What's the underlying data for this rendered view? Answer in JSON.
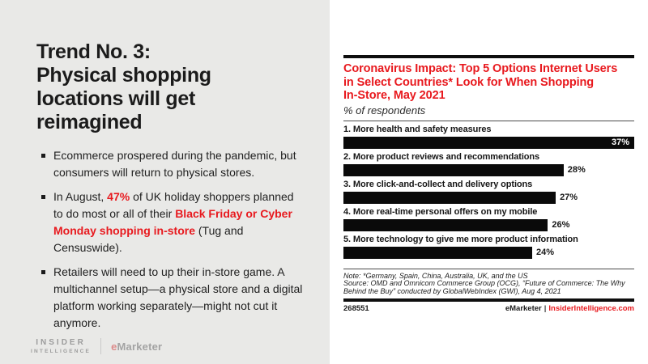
{
  "slide": {
    "title_lines": [
      "Trend No. 3:",
      "Physical shopping",
      "locations will get",
      "reimagined"
    ],
    "bullets": [
      {
        "segments": [
          {
            "text": "Ecommerce prospered during the pandemic, but consumers will return to physical stores.",
            "red": false
          }
        ]
      },
      {
        "segments": [
          {
            "text": "In August, ",
            "red": false
          },
          {
            "text": "47%",
            "red": true
          },
          {
            "text": " of UK holiday shoppers planned to do most or all of their ",
            "red": false
          },
          {
            "text": "Black Friday or Cyber Monday shopping in-store",
            "red": true
          },
          {
            "text": " (Tug and Censuswide).",
            "red": false
          }
        ]
      },
      {
        "segments": [
          {
            "text": "Retailers will need to up their in-store game. A multichannel setup—a physical store and a digital platform working separately—might not cut it anymore.",
            "red": false
          }
        ]
      }
    ],
    "logo": {
      "insider": "INSIDER",
      "intelligence": "INTELLIGENCE",
      "emarketer_e": "e",
      "emarketer_rest": "Marketer"
    }
  },
  "chart": {
    "title_lines": [
      "Coronavirus Impact: Top 5 Options Internet Users",
      "in Select Countries* Look for When Shopping",
      "In-Store, May 2021"
    ],
    "subtitle": "% of respondents",
    "bars": [
      {
        "label": "1. More health and safety measures",
        "value": "37%",
        "pct": 100
      },
      {
        "label": "2. More product reviews and recommendations",
        "value": "28%",
        "pct": 75.7
      },
      {
        "label": "3. More click-and-collect and delivery options",
        "value": "27%",
        "pct": 73.0
      },
      {
        "label": "4. More real-time personal offers on my mobile",
        "value": "26%",
        "pct": 70.3
      },
      {
        "label": "5. More technology to give me more product information",
        "value": "24%",
        "pct": 64.9
      }
    ],
    "note": "Note: *Germany, Spain, China, Australia, UK, and the US",
    "source": "Source: OMD and Omnicom Commerce Group (OCG), “Future of Commerce: The Why Behind the Buy” conducted by GlobalWebIndex (GWI), Aug 4, 2021",
    "chart_id": "268551",
    "footer_brand": "eMarketer",
    "footer_pipe": "|",
    "footer_site": "InsiderIntelligence.com"
  },
  "chart_data": {
    "type": "bar",
    "orientation": "horizontal",
    "title": "Coronavirus Impact: Top 5 Options Internet Users in Select Countries* Look for When Shopping In-Store, May 2021",
    "subtitle": "% of respondents",
    "categories": [
      "1. More health and safety measures",
      "2. More product reviews and recommendations",
      "3. More click-and-collect and delivery options",
      "4. More real-time personal offers on my mobile",
      "5. More technology to give me more product information"
    ],
    "values": [
      37,
      28,
      27,
      26,
      24
    ],
    "unit": "%",
    "xlim": [
      0,
      37
    ],
    "grid": false,
    "legend": false,
    "note": "Note: *Germany, Spain, China, Australia, UK, and the US",
    "source": "Source: OMD and Omnicom Commerce Group (OCG), “Future of Commerce: The Why Behind the Buy” conducted by GlobalWebIndex (GWI), Aug 4, 2021"
  },
  "colors": {
    "accent_red": "#e8191e",
    "bar_black": "#0a0a0a",
    "background_gray": "#e9e9e7",
    "panel_white": "#ffffff",
    "logo_gray": "#9c9c9c"
  }
}
